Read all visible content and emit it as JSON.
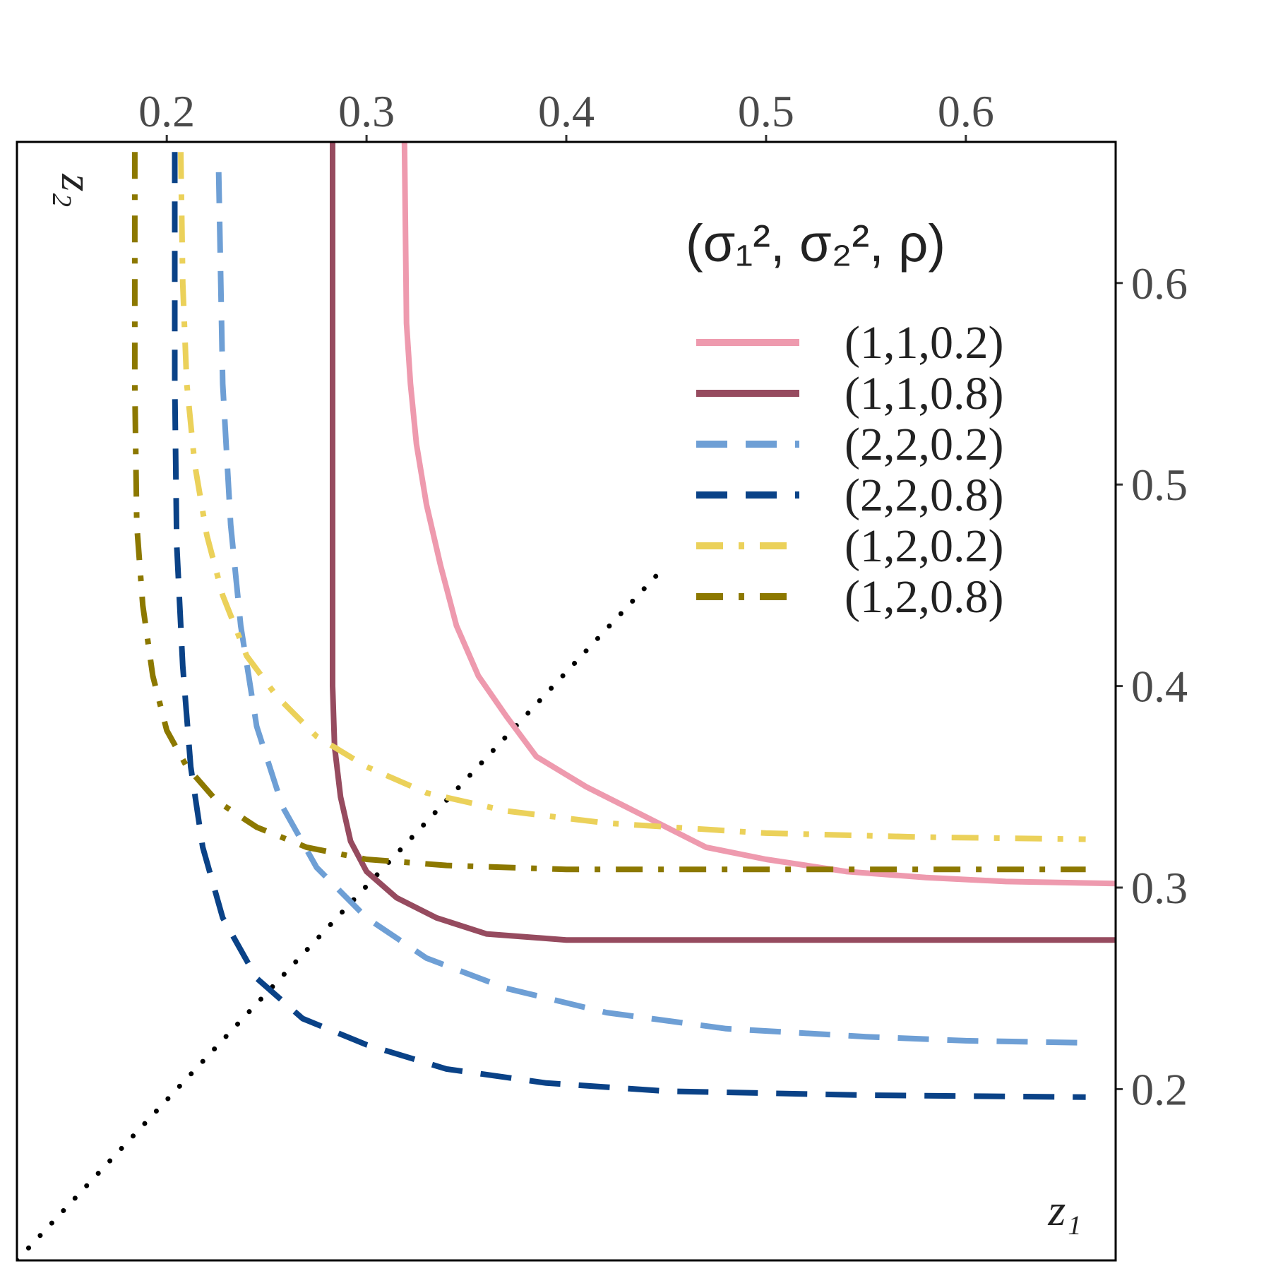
{
  "chart_data": {
    "type": "line",
    "title": "",
    "xlabel": "z₁",
    "ylabel": "z₂",
    "xlim": [
      0.125,
      0.675
    ],
    "ylim": [
      0.115,
      0.67
    ],
    "xticks": [
      0.2,
      0.3,
      0.4,
      0.5,
      0.6
    ],
    "xtick_labels": [
      "0.2",
      "0.3",
      "0.4",
      "0.5",
      "0.6"
    ],
    "yticks": [
      0.2,
      0.3,
      0.4,
      0.5,
      0.6
    ],
    "ytick_labels": [
      "0.2",
      "0.3",
      "0.4",
      "0.5",
      "0.6"
    ],
    "x_axis_position": "top",
    "y_axis_position": "right",
    "grid": false,
    "legend": {
      "placement": "top-right",
      "title": "(σ₁², σ₂², ρ)"
    },
    "reference_line": {
      "style": "dotted",
      "color": "#000000",
      "points": [
        [
          0.125,
          0.115
        ],
        [
          0.45,
          0.46
        ]
      ]
    },
    "series": [
      {
        "name": "(1,1,0.2)",
        "color": "#EE9AAE",
        "dash": "solid",
        "points": [
          [
            0.319,
            0.67
          ],
          [
            0.32,
            0.58
          ],
          [
            0.322,
            0.55
          ],
          [
            0.325,
            0.52
          ],
          [
            0.33,
            0.49
          ],
          [
            0.337,
            0.46
          ],
          [
            0.345,
            0.43
          ],
          [
            0.356,
            0.405
          ],
          [
            0.37,
            0.385
          ],
          [
            0.385,
            0.365
          ],
          [
            0.41,
            0.35
          ],
          [
            0.44,
            0.335
          ],
          [
            0.47,
            0.32
          ],
          [
            0.5,
            0.314
          ],
          [
            0.54,
            0.308
          ],
          [
            0.58,
            0.305
          ],
          [
            0.62,
            0.303
          ],
          [
            0.675,
            0.302
          ]
        ]
      },
      {
        "name": "(1,1,0.8)",
        "color": "#964B5F",
        "dash": "solid",
        "points": [
          [
            0.283,
            0.67
          ],
          [
            0.283,
            0.5
          ],
          [
            0.283,
            0.4
          ],
          [
            0.284,
            0.37
          ],
          [
            0.287,
            0.345
          ],
          [
            0.292,
            0.323
          ],
          [
            0.3,
            0.308
          ],
          [
            0.315,
            0.295
          ],
          [
            0.335,
            0.285
          ],
          [
            0.36,
            0.277
          ],
          [
            0.4,
            0.274
          ],
          [
            0.5,
            0.274
          ],
          [
            0.6,
            0.274
          ],
          [
            0.675,
            0.274
          ]
        ]
      },
      {
        "name": "(2,2,0.2)",
        "color": "#6E9FD5",
        "dash": "dashed",
        "points": [
          [
            0.226,
            0.655
          ],
          [
            0.228,
            0.55
          ],
          [
            0.232,
            0.48
          ],
          [
            0.237,
            0.43
          ],
          [
            0.245,
            0.38
          ],
          [
            0.258,
            0.34
          ],
          [
            0.275,
            0.31
          ],
          [
            0.3,
            0.285
          ],
          [
            0.33,
            0.265
          ],
          [
            0.37,
            0.25
          ],
          [
            0.42,
            0.238
          ],
          [
            0.48,
            0.23
          ],
          [
            0.55,
            0.226
          ],
          [
            0.6,
            0.224
          ],
          [
            0.66,
            0.223
          ]
        ]
      },
      {
        "name": "(2,2,0.8)",
        "color": "#0A4287",
        "dash": "dashed",
        "points": [
          [
            0.204,
            0.665
          ],
          [
            0.204,
            0.55
          ],
          [
            0.205,
            0.47
          ],
          [
            0.208,
            0.41
          ],
          [
            0.212,
            0.36
          ],
          [
            0.218,
            0.32
          ],
          [
            0.228,
            0.285
          ],
          [
            0.245,
            0.255
          ],
          [
            0.268,
            0.235
          ],
          [
            0.3,
            0.222
          ],
          [
            0.34,
            0.21
          ],
          [
            0.39,
            0.203
          ],
          [
            0.45,
            0.199
          ],
          [
            0.55,
            0.197
          ],
          [
            0.66,
            0.196
          ]
        ]
      },
      {
        "name": "(1,2,0.2)",
        "color": "#EBD15A",
        "dash": "dashdot",
        "points": [
          [
            0.207,
            0.665
          ],
          [
            0.208,
            0.6
          ],
          [
            0.21,
            0.55
          ],
          [
            0.214,
            0.51
          ],
          [
            0.22,
            0.475
          ],
          [
            0.228,
            0.445
          ],
          [
            0.24,
            0.415
          ],
          [
            0.255,
            0.395
          ],
          [
            0.275,
            0.375
          ],
          [
            0.3,
            0.36
          ],
          [
            0.33,
            0.347
          ],
          [
            0.37,
            0.338
          ],
          [
            0.42,
            0.332
          ],
          [
            0.5,
            0.327
          ],
          [
            0.58,
            0.325
          ],
          [
            0.66,
            0.324
          ]
        ]
      },
      {
        "name": "(1,2,0.8)",
        "color": "#8C7800",
        "dash": "dashdot",
        "points": [
          [
            0.184,
            0.665
          ],
          [
            0.184,
            0.55
          ],
          [
            0.185,
            0.48
          ],
          [
            0.188,
            0.44
          ],
          [
            0.193,
            0.405
          ],
          [
            0.2,
            0.378
          ],
          [
            0.21,
            0.36
          ],
          [
            0.225,
            0.343
          ],
          [
            0.245,
            0.33
          ],
          [
            0.27,
            0.32
          ],
          [
            0.3,
            0.314
          ],
          [
            0.34,
            0.311
          ],
          [
            0.4,
            0.309
          ],
          [
            0.5,
            0.309
          ],
          [
            0.66,
            0.309
          ]
        ]
      }
    ]
  }
}
